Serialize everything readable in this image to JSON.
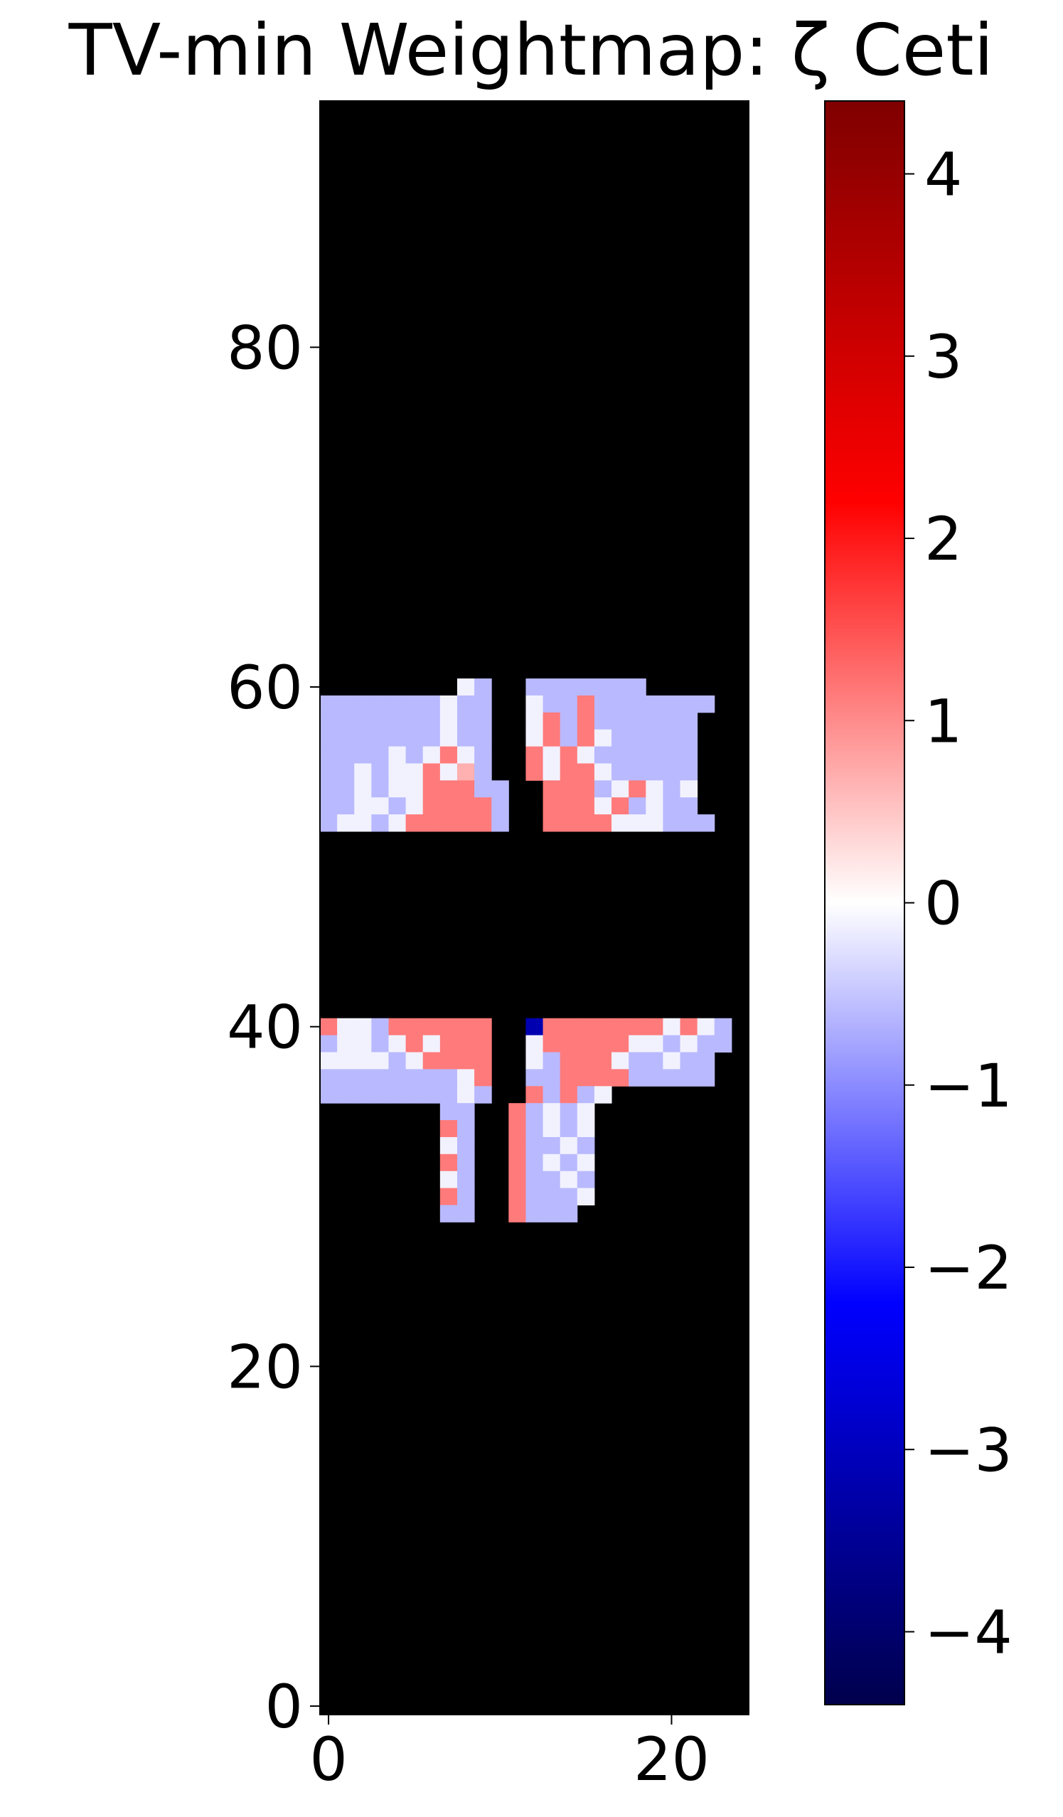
{
  "chart_data": {
    "type": "heatmap",
    "title": "TV-min Weightmap: ζ Ceti",
    "xlabel": "",
    "ylabel": "",
    "xlim": [
      -0.5,
      24.5
    ],
    "ylim": [
      -0.5,
      94.5
    ],
    "origin": "lower",
    "grid": false,
    "background_value": "masked (black)",
    "x_ticks": [
      0,
      20
    ],
    "y_ticks": [
      0,
      20,
      40,
      60,
      80
    ],
    "colormap": "seismic",
    "colorbar": {
      "min": -4.4,
      "max": 4.4,
      "ticks": [
        -4,
        -3,
        -2,
        -1,
        0,
        1,
        2,
        3,
        4
      ],
      "tick_labels": [
        "−4",
        "−3",
        "−2",
        "−1",
        "0",
        "1",
        "2",
        "3",
        "4"
      ]
    },
    "cell_grid": {
      "upper_block": {
        "row_range": [
          51,
          60
        ],
        "rows_top_to_bottom": [
          "........0-..-------.....",
          "-------0--..0--+-------",
          "-------0--..0+-+------",
          "-------0--..0+-+0-----",
          "----0-0+0-..+0+0------",
          "--0-00+02-..+0++0-----",
          "--0-00+++--..+++-0+0-0",
          "--00-0++++-..+++0+-0--",
          "-00-0+++++-..++++000---"
        ]
      },
      "lower_block": {
        "row_range": [
          28,
          40
        ],
        "rows_top_to_bottom": [
          "+00-++++++..B+++++++0+0-",
          "-00-0+0+++..0+++++00-0--",
          "0000-0++++..0-+++0--0--",
          "--------0+..--++++-----",
          "--------0-..+-+-0",
          ".......--..+-0-0",
          ".......+-..+-0-0",
          ".......0-..+--0-",
          ".......+-..+-0-0",
          ".......0-..+--0-",
          ".......+-..+---0",
          ".......--..+---"
        ]
      }
    }
  }
}
